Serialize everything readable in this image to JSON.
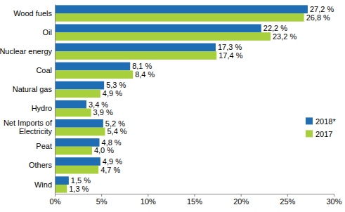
{
  "chart_data": {
    "type": "bar",
    "orientation": "horizontal",
    "categories": [
      "Wood fuels",
      "Oil",
      "Nuclear energy",
      "Coal",
      "Natural gas",
      "Hydro",
      "Net Imports of Electricity",
      "Peat",
      "Others",
      "Wind"
    ],
    "series": [
      {
        "name": "2018*",
        "color": "#1f6db3",
        "values": [
          27.2,
          22.2,
          17.3,
          8.1,
          5.3,
          3.4,
          5.2,
          4.8,
          4.9,
          1.5
        ],
        "value_labels": [
          "27,2 %",
          "22,2 %",
          "17,3 %",
          "8,1 %",
          "5,3 %",
          "3,4 %",
          "5,2 %",
          "4,8 %",
          "4,9 %",
          "1,5 %"
        ]
      },
      {
        "name": "2017",
        "color": "#a8cf3c",
        "values": [
          26.8,
          23.2,
          17.4,
          8.4,
          4.9,
          3.9,
          5.4,
          4.0,
          4.7,
          1.3
        ],
        "value_labels": [
          "26,8 %",
          "23,2 %",
          "17,4 %",
          "8,4 %",
          "4,9 %",
          "3,9 %",
          "5,4 %",
          "4,0 %",
          "4,7 %",
          "1,3 %"
        ]
      }
    ],
    "xlim": [
      0,
      30
    ],
    "xticks": [
      {
        "value": 0,
        "label": "0%"
      },
      {
        "value": 5,
        "label": "5%"
      },
      {
        "value": 10,
        "label": "10%"
      },
      {
        "value": 15,
        "label": "15%"
      },
      {
        "value": 20,
        "label": "20%"
      },
      {
        "value": 25,
        "label": "25%"
      },
      {
        "value": 30,
        "label": "30%"
      }
    ],
    "grid": false,
    "data_labels": true,
    "legend": "right"
  }
}
